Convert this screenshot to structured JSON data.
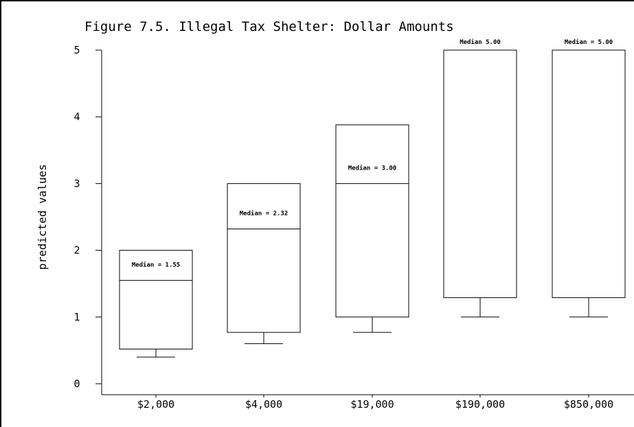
{
  "chart_data": {
    "type": "box",
    "title": "Figure 7.5. Illegal Tax Shelter: Dollar Amounts",
    "xlabel": "",
    "ylabel": "predicted values",
    "ylim": [
      0,
      5
    ],
    "yticks": [
      "0",
      "1",
      "2",
      "3",
      "4",
      "5"
    ],
    "categories": [
      "$2,000",
      "$4,000",
      "$19,000",
      "$190,000",
      "$850,000"
    ],
    "boxes": [
      {
        "whisker_low": 0.4,
        "q1": 0.52,
        "median": 1.55,
        "q3": 2.0,
        "whisker_high": 2.0,
        "median_label": "Median = 1.55"
      },
      {
        "whisker_low": 0.6,
        "q1": 0.77,
        "median": 2.32,
        "q3": 3.0,
        "whisker_high": 3.0,
        "median_label": "Median = 2.32"
      },
      {
        "whisker_low": 0.77,
        "q1": 1.0,
        "median": 3.0,
        "q3": 3.88,
        "whisker_high": 3.88,
        "median_label": "Median = 3.00"
      },
      {
        "whisker_low": 1.0,
        "q1": 1.29,
        "median": 5.0,
        "q3": 5.0,
        "whisker_high": 5.0,
        "median_label": "Median 5.00"
      },
      {
        "whisker_low": 1.0,
        "q1": 1.29,
        "median": 5.0,
        "q3": 5.0,
        "whisker_high": 5.0,
        "median_label": "Median = 5.00"
      }
    ]
  }
}
